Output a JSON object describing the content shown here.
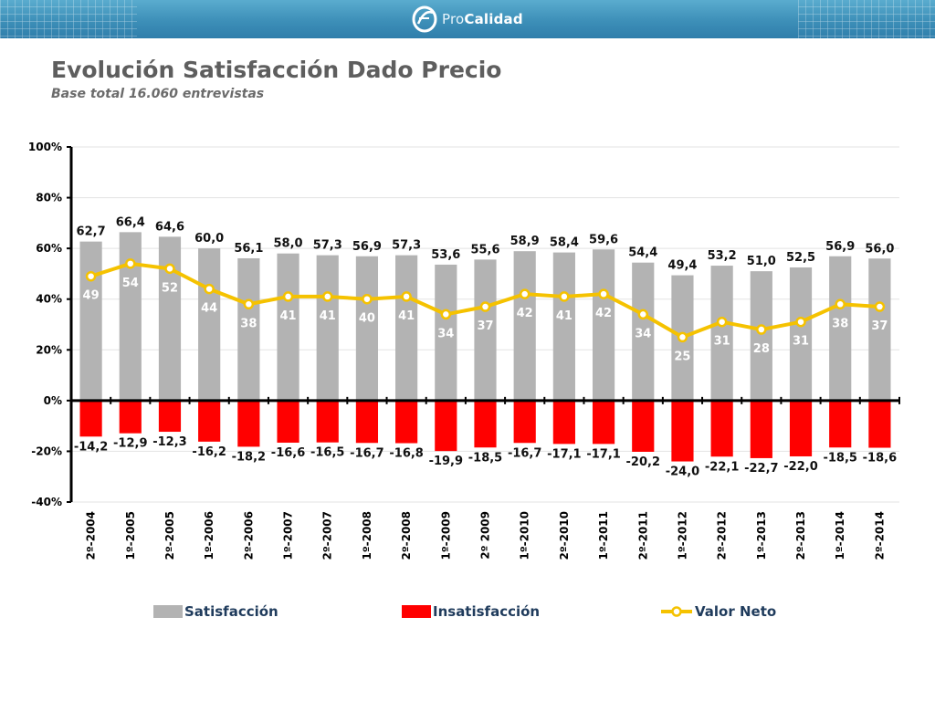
{
  "header": {
    "brand_prefix": "Pro",
    "brand_name": "Calidad"
  },
  "colors": {
    "satisfaccion": "#b3b3b3",
    "insatisfaccion": "#ff0000",
    "valor_neto": "#f5c200",
    "banner": "#3d8fb8",
    "title": "#5e5e5e"
  },
  "chart_data": {
    "type": "bar",
    "title": "Evolución Satisfacción Dado Precio",
    "subtitle": "Base total 16.060 entrevistas",
    "categories": [
      "2º-2004",
      "1º-2005",
      "2º-2005",
      "1º-2006",
      "2º-2006",
      "1º-2007",
      "2º-2007",
      "1º-2008",
      "2º-2008",
      "1º-2009",
      "2º 2009",
      "1º-2010",
      "2º-2010",
      "1º-2011",
      "2º-2011",
      "1º-2012",
      "2º-2012",
      "1º-2013",
      "2º-2013",
      "1º-2014",
      "2º-2014"
    ],
    "series": [
      {
        "name": "Satisfacción",
        "type": "bar",
        "values": [
          62.7,
          66.4,
          64.6,
          60.0,
          56.1,
          58.0,
          57.3,
          56.9,
          57.3,
          53.6,
          55.6,
          58.9,
          58.4,
          59.6,
          54.4,
          49.4,
          53.2,
          51.0,
          52.5,
          56.9,
          56.0
        ],
        "labels": [
          "62,7",
          "66,4",
          "64,6",
          "60,0",
          "56,1",
          "58,0",
          "57,3",
          "56,9",
          "57,3",
          "53,6",
          "55,6",
          "58,9",
          "58,4",
          "59,6",
          "54,4",
          "49,4",
          "53,2",
          "51,0",
          "52,5",
          "56,9",
          "56,0"
        ]
      },
      {
        "name": "Insatisfacción",
        "type": "bar",
        "values": [
          -14.2,
          -12.9,
          -12.3,
          -16.2,
          -18.2,
          -16.6,
          -16.5,
          -16.7,
          -16.8,
          -19.9,
          -18.5,
          -16.7,
          -17.1,
          -17.1,
          -20.2,
          -24.0,
          -22.1,
          -22.7,
          -22.0,
          -18.5,
          -18.6
        ],
        "labels": [
          "-14,2",
          "-12,9",
          "-12,3",
          "-16,2",
          "-18,2",
          "-16,6",
          "-16,5",
          "-16,7",
          "-16,8",
          "-19,9",
          "-18,5",
          "-16,7",
          "-17,1",
          "-17,1",
          "-20,2",
          "-24,0",
          "-22,1",
          "-22,7",
          "-22,0",
          "-18,5",
          "-18,6"
        ]
      },
      {
        "name": "Valor Neto",
        "type": "line",
        "values": [
          49,
          54,
          52,
          44,
          38,
          41,
          41,
          40,
          41,
          34,
          37,
          42,
          41,
          42,
          34,
          25,
          31,
          28,
          31,
          38,
          37
        ],
        "labels": [
          "49",
          "54",
          "52",
          "44",
          "38",
          "41",
          "41",
          "40",
          "41",
          "34",
          "37",
          "42",
          "41",
          "42",
          "34",
          "25",
          "31",
          "28",
          "31",
          "38",
          "37"
        ]
      }
    ],
    "ylim": [
      -40,
      100
    ],
    "yticks": [
      100,
      80,
      60,
      40,
      20,
      0,
      -20,
      -40
    ],
    "ytick_labels": [
      "100%",
      "80%",
      "60%",
      "40%",
      "20%",
      "0%",
      "-20%",
      "-40%"
    ],
    "grid": true,
    "legend": "bottom",
    "xlabel": "",
    "ylabel": ""
  }
}
